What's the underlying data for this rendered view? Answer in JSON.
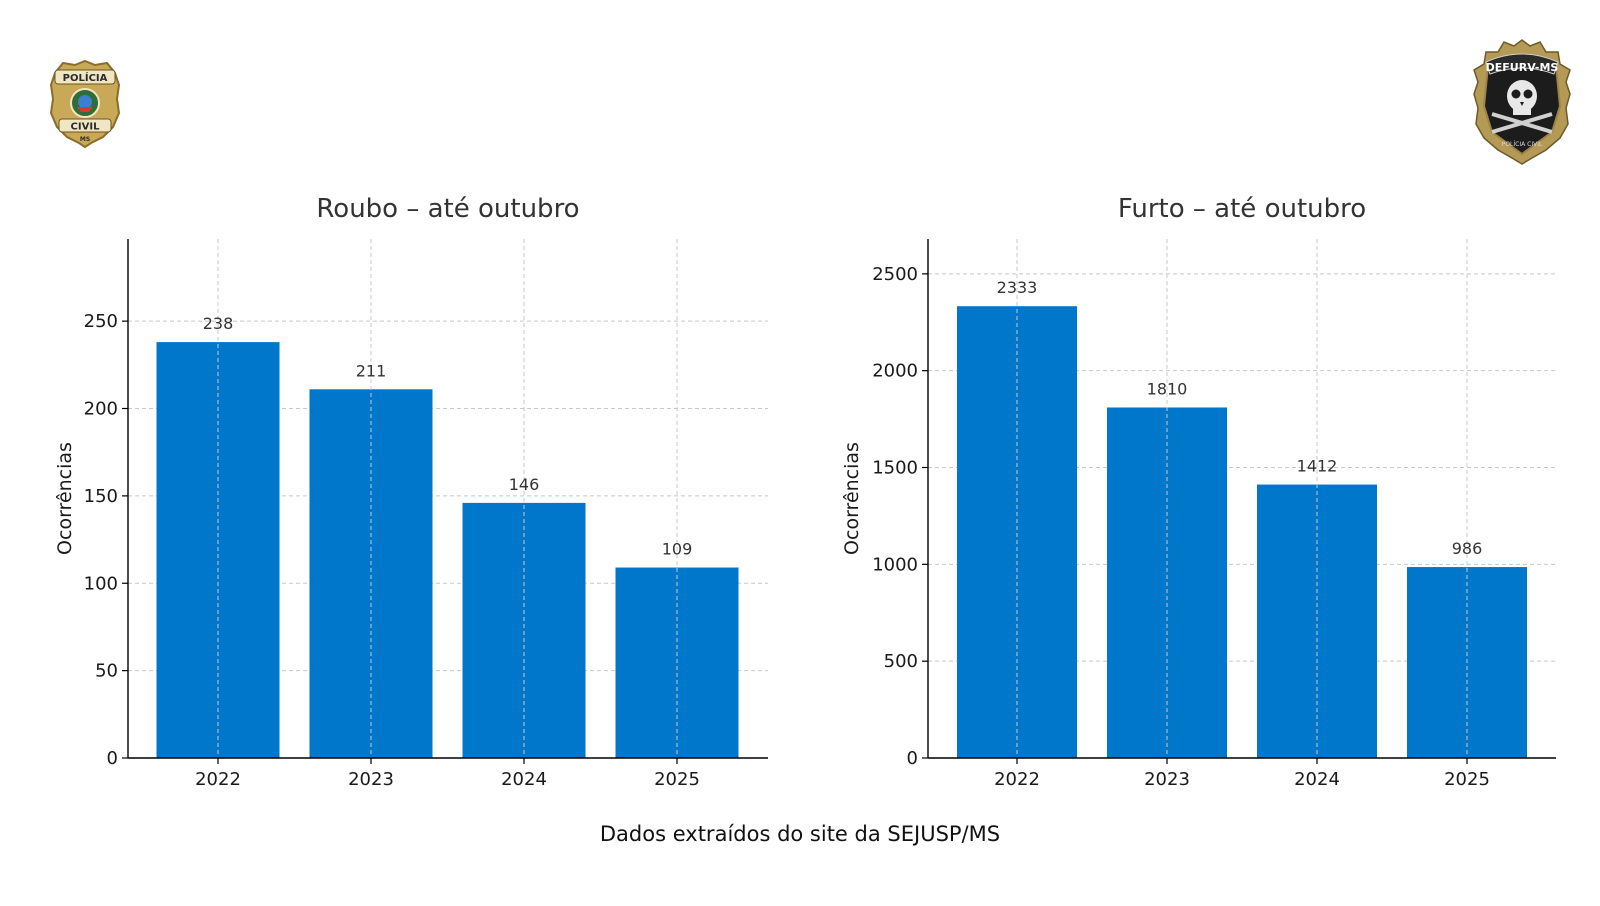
{
  "colors": {
    "bar": "#0177cc"
  },
  "logos": {
    "left": {
      "icon": "policia-civil-badge-icon",
      "line1": "POLÍCIA",
      "line2": "CIVIL",
      "line3": "MS"
    },
    "right": {
      "icon": "defurv-skull-badge-icon",
      "line1": "DEFURV-MS",
      "line2": "POLÍCIA CIVIL"
    }
  },
  "footer": "Dados extraídos do site da SEJUSP/MS",
  "chart_data": [
    {
      "type": "bar",
      "title": "Roubo – até outubro",
      "xlabel": "",
      "ylabel": "Ocorrências",
      "categories": [
        "2022",
        "2023",
        "2024",
        "2025"
      ],
      "values": [
        238,
        211,
        146,
        109
      ],
      "data_labels": [
        "238",
        "211",
        "146",
        "109"
      ],
      "ylim": [
        0,
        297
      ],
      "yticks": [
        0,
        50,
        100,
        150,
        200,
        250
      ],
      "grid": true
    },
    {
      "type": "bar",
      "title": "Furto – até outubro",
      "xlabel": "",
      "ylabel": "Ocorrências",
      "categories": [
        "2022",
        "2023",
        "2024",
        "2025"
      ],
      "values": [
        2333,
        1810,
        1412,
        986
      ],
      "data_labels": [
        "2333",
        "1810",
        "1412",
        "986"
      ],
      "ylim": [
        0,
        2680
      ],
      "yticks": [
        0,
        500,
        1000,
        1500,
        2000,
        2500
      ],
      "grid": true
    }
  ]
}
